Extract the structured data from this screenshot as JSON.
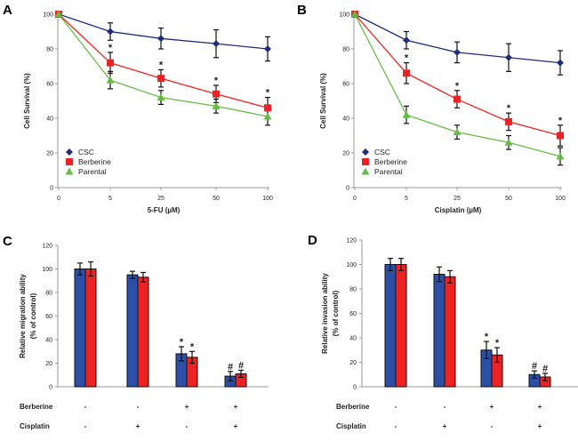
{
  "colors": {
    "csc": "#1f2d7a",
    "berberine": "#ee2222",
    "parental": "#66bb44",
    "bar_blue": "#2b4ea6",
    "bar_red": "#ee2222",
    "error": "#111111"
  },
  "chart_data": [
    {
      "panel": "A",
      "type": "line",
      "xlabel": "5-FU (µM)",
      "ylabel": "Cell Survival (%)",
      "categories": [
        "0",
        "5",
        "25",
        "50",
        "100"
      ],
      "ylim": [
        0,
        100
      ],
      "yticks": [
        0,
        20,
        40,
        60,
        80,
        100
      ],
      "legend": "bottom-left",
      "series": [
        {
          "name": "CSC",
          "marker": "diamond",
          "values": [
            100,
            90,
            86,
            83,
            80
          ],
          "errors": [
            0,
            5,
            6,
            8,
            7
          ]
        },
        {
          "name": "Berberine",
          "marker": "square",
          "values": [
            100,
            72,
            63,
            54,
            46
          ],
          "errors": [
            0,
            6,
            5,
            5,
            6
          ]
        },
        {
          "name": "Parental",
          "marker": "triangle",
          "values": [
            100,
            62,
            52,
            47,
            41
          ],
          "errors": [
            0,
            5,
            4,
            4,
            5
          ]
        }
      ],
      "annotations": [
        {
          "series": "Berberine",
          "categories": [
            "5",
            "25",
            "50",
            "100"
          ],
          "symbol": "*"
        }
      ]
    },
    {
      "panel": "B",
      "type": "line",
      "xlabel": "Cisplatin (µM)",
      "ylabel": "Cell Survival (%)",
      "categories": [
        "0",
        "5",
        "25",
        "50",
        "100"
      ],
      "ylim": [
        0,
        100
      ],
      "yticks": [
        0,
        20,
        40,
        60,
        80,
        100
      ],
      "legend": "bottom-left",
      "series": [
        {
          "name": "CSC",
          "marker": "diamond",
          "values": [
            100,
            85,
            78,
            75,
            72
          ],
          "errors": [
            0,
            5,
            6,
            8,
            7
          ]
        },
        {
          "name": "Berberine",
          "marker": "square",
          "values": [
            100,
            66,
            51,
            38,
            30
          ],
          "errors": [
            0,
            6,
            5,
            5,
            6
          ]
        },
        {
          "name": "Parental",
          "marker": "triangle",
          "values": [
            100,
            42,
            32,
            26,
            18
          ],
          "errors": [
            0,
            5,
            4,
            4,
            5
          ]
        }
      ],
      "annotations": [
        {
          "series": "Berberine",
          "categories": [
            "5",
            "25",
            "50",
            "100"
          ],
          "symbol": "*"
        }
      ]
    },
    {
      "panel": "C",
      "type": "bar",
      "ylabel": "Relative migration ability\n(% of control)",
      "ylim": [
        0,
        120
      ],
      "yticks": [
        0,
        20,
        40,
        60,
        80,
        100,
        120
      ],
      "conditions": [
        {
          "label": "Berberine",
          "values": [
            "-",
            "-",
            "+",
            "+"
          ]
        },
        {
          "label": "Cisplatin",
          "values": [
            "-",
            "+",
            "-",
            "+"
          ]
        }
      ],
      "series": [
        {
          "color": "blue",
          "values": [
            100,
            95,
            28,
            9
          ],
          "errors": [
            5,
            3,
            6,
            4
          ],
          "marks": [
            "",
            "",
            "*",
            "#"
          ]
        },
        {
          "color": "red",
          "values": [
            100,
            93,
            25,
            11
          ],
          "errors": [
            6,
            4,
            5,
            3
          ],
          "marks": [
            "",
            "",
            "*",
            "#"
          ]
        }
      ]
    },
    {
      "panel": "D",
      "type": "bar",
      "ylabel": "Relative invasion ability\n(% of control)",
      "ylim": [
        0,
        120
      ],
      "yticks": [
        0,
        20,
        40,
        60,
        80,
        100,
        120
      ],
      "conditions": [
        {
          "label": "Berberine",
          "values": [
            "-",
            "-",
            "+",
            "+"
          ]
        },
        {
          "label": "Cisplatin",
          "values": [
            "-",
            "+",
            "-",
            "+"
          ]
        }
      ],
      "series": [
        {
          "color": "blue",
          "values": [
            100,
            92,
            30,
            10
          ],
          "errors": [
            5,
            6,
            7,
            3
          ],
          "marks": [
            "",
            "",
            "*",
            "#"
          ]
        },
        {
          "color": "red",
          "values": [
            100,
            90,
            26,
            8
          ],
          "errors": [
            5,
            5,
            6,
            3
          ],
          "marks": [
            "",
            "",
            "*",
            "#"
          ]
        }
      ]
    }
  ]
}
